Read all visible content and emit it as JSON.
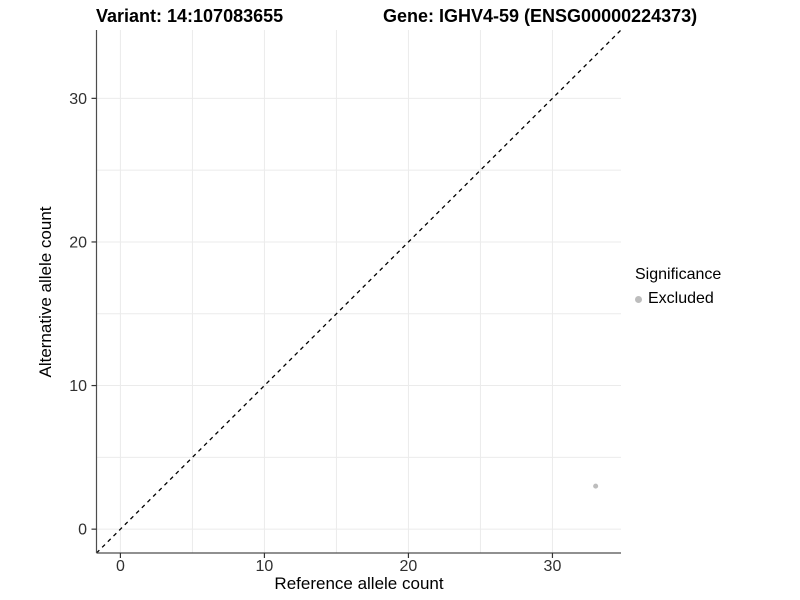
{
  "header": {
    "variant_title": "Variant: 14:107083655",
    "gene_title": "Gene: IGHV4-59 (ENSG00000224373)"
  },
  "chart_data": {
    "type": "scatter",
    "xlabel": "Reference allele count",
    "ylabel": "Alternative allele count",
    "xlim": [
      -1.66,
      34.76
    ],
    "ylim": [
      -1.66,
      34.76
    ],
    "x_ticks": [
      0,
      10,
      20,
      30
    ],
    "y_ticks": [
      0,
      10,
      20,
      30
    ],
    "x_minor_ticks": [
      5,
      15,
      25
    ],
    "y_minor_ticks": [
      5,
      15,
      25
    ],
    "grid": true,
    "identity_line": {
      "style": "dashed",
      "from": [
        -1.66,
        -1.66
      ],
      "to": [
        34.76,
        34.76
      ],
      "color": "#000000"
    },
    "series": [
      {
        "name": "Excluded",
        "color": "#BDBDBD",
        "points": [
          {
            "x": 33,
            "y": 3
          }
        ]
      }
    ],
    "colors": {
      "grid": "#EBEBEB",
      "axis": "#4D4D4D",
      "tick": "#333333",
      "tick_label": "#303030"
    }
  },
  "legend": {
    "title": "Significance",
    "position": "right",
    "items": [
      {
        "label": "Excluded",
        "color": "#BDBDBD"
      }
    ]
  }
}
